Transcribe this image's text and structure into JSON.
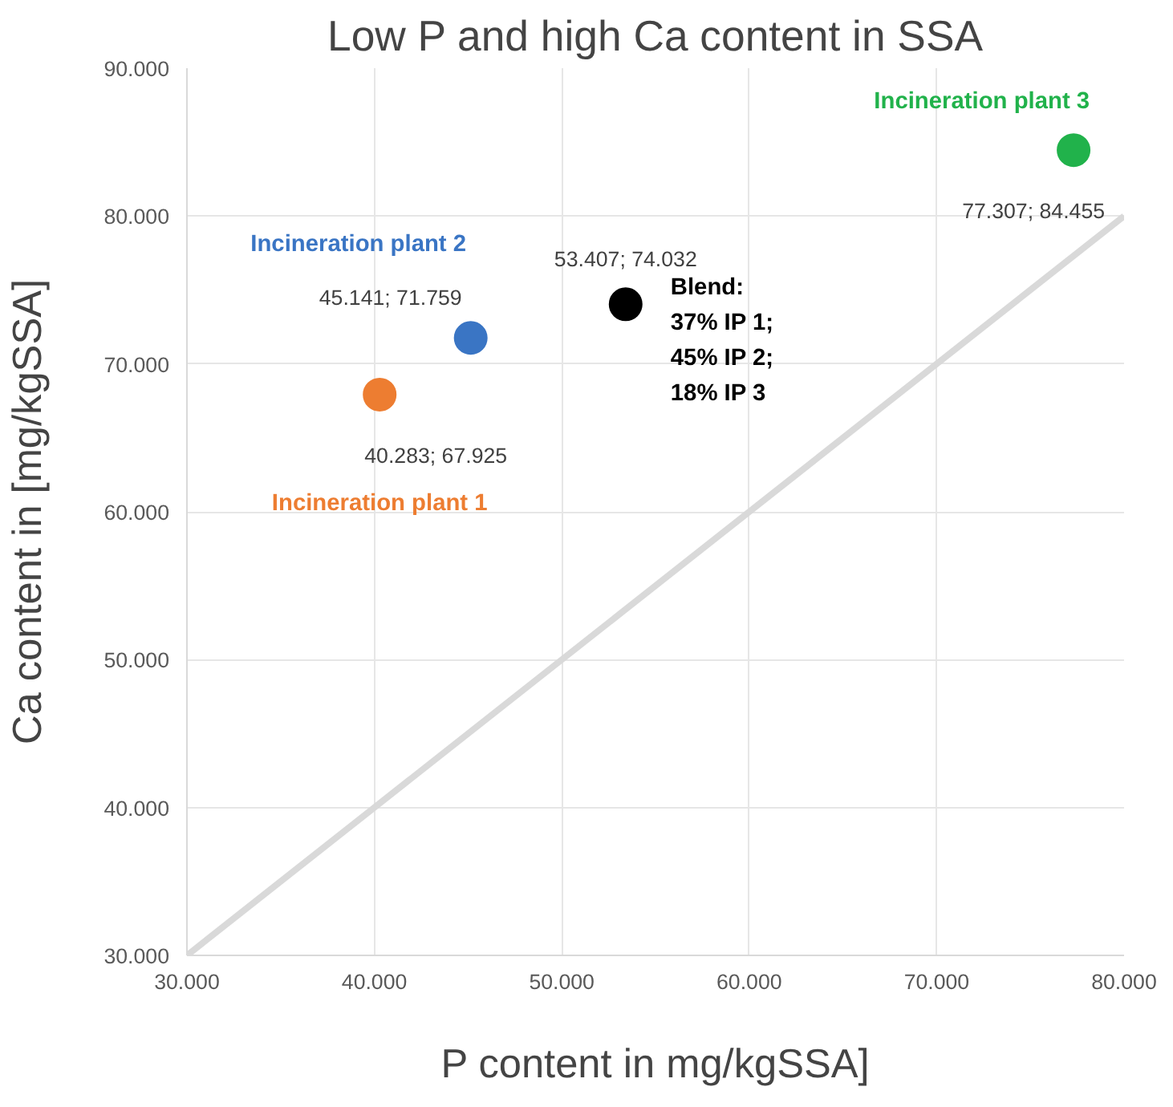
{
  "chart_data": {
    "type": "scatter",
    "title": "Low P and high Ca content in SSA",
    "xlabel": "P content in mg/kgSSA]",
    "ylabel": "Ca content in [mg/kgSSA]",
    "xlim": [
      30,
      80
    ],
    "ylim": [
      30,
      90
    ],
    "xticks": [
      {
        "value": 30,
        "label": "30.000"
      },
      {
        "value": 40,
        "label": "40.000"
      },
      {
        "value": 50,
        "label": "50.000"
      },
      {
        "value": 60,
        "label": "60.000"
      },
      {
        "value": 70,
        "label": "70.000"
      },
      {
        "value": 80,
        "label": "80.000"
      }
    ],
    "yticks": [
      {
        "value": 30,
        "label": "30.000"
      },
      {
        "value": 40,
        "label": "40.000"
      },
      {
        "value": 50,
        "label": "50.000"
      },
      {
        "value": 60,
        "label": "60.000"
      },
      {
        "value": 70,
        "label": "70.000"
      },
      {
        "value": 80,
        "label": "80.000"
      },
      {
        "value": 90,
        "label": "90.000"
      }
    ],
    "grid": true,
    "marker": "circle",
    "series": [
      {
        "name": "Incineration plant 1",
        "color": "#ed7d31",
        "x": [
          40.283
        ],
        "values": [
          67.925
        ],
        "value_labels": [
          "40.283; 67.925"
        ]
      },
      {
        "name": "Incineration plant 2",
        "color": "#3a75c4",
        "x": [
          45.141
        ],
        "values": [
          71.759
        ],
        "value_labels": [
          "45.141; 71.759"
        ]
      },
      {
        "name": "Blend:\n37% IP 1;\n45% IP 2;\n18% IP 3",
        "color": "#000000",
        "x": [
          53.407
        ],
        "values": [
          74.032
        ],
        "value_labels": [
          "53.407; 74.032"
        ]
      },
      {
        "name": "Incineration plant 3",
        "color": "#21b24b",
        "x": [
          77.307
        ],
        "values": [
          84.455
        ],
        "value_labels": [
          "77.307; 84.455"
        ]
      },
      {
        "type": "line",
        "marker": "none",
        "color": "#d9d9d9",
        "x": [
          30,
          80
        ],
        "values": [
          30,
          80
        ]
      }
    ]
  }
}
